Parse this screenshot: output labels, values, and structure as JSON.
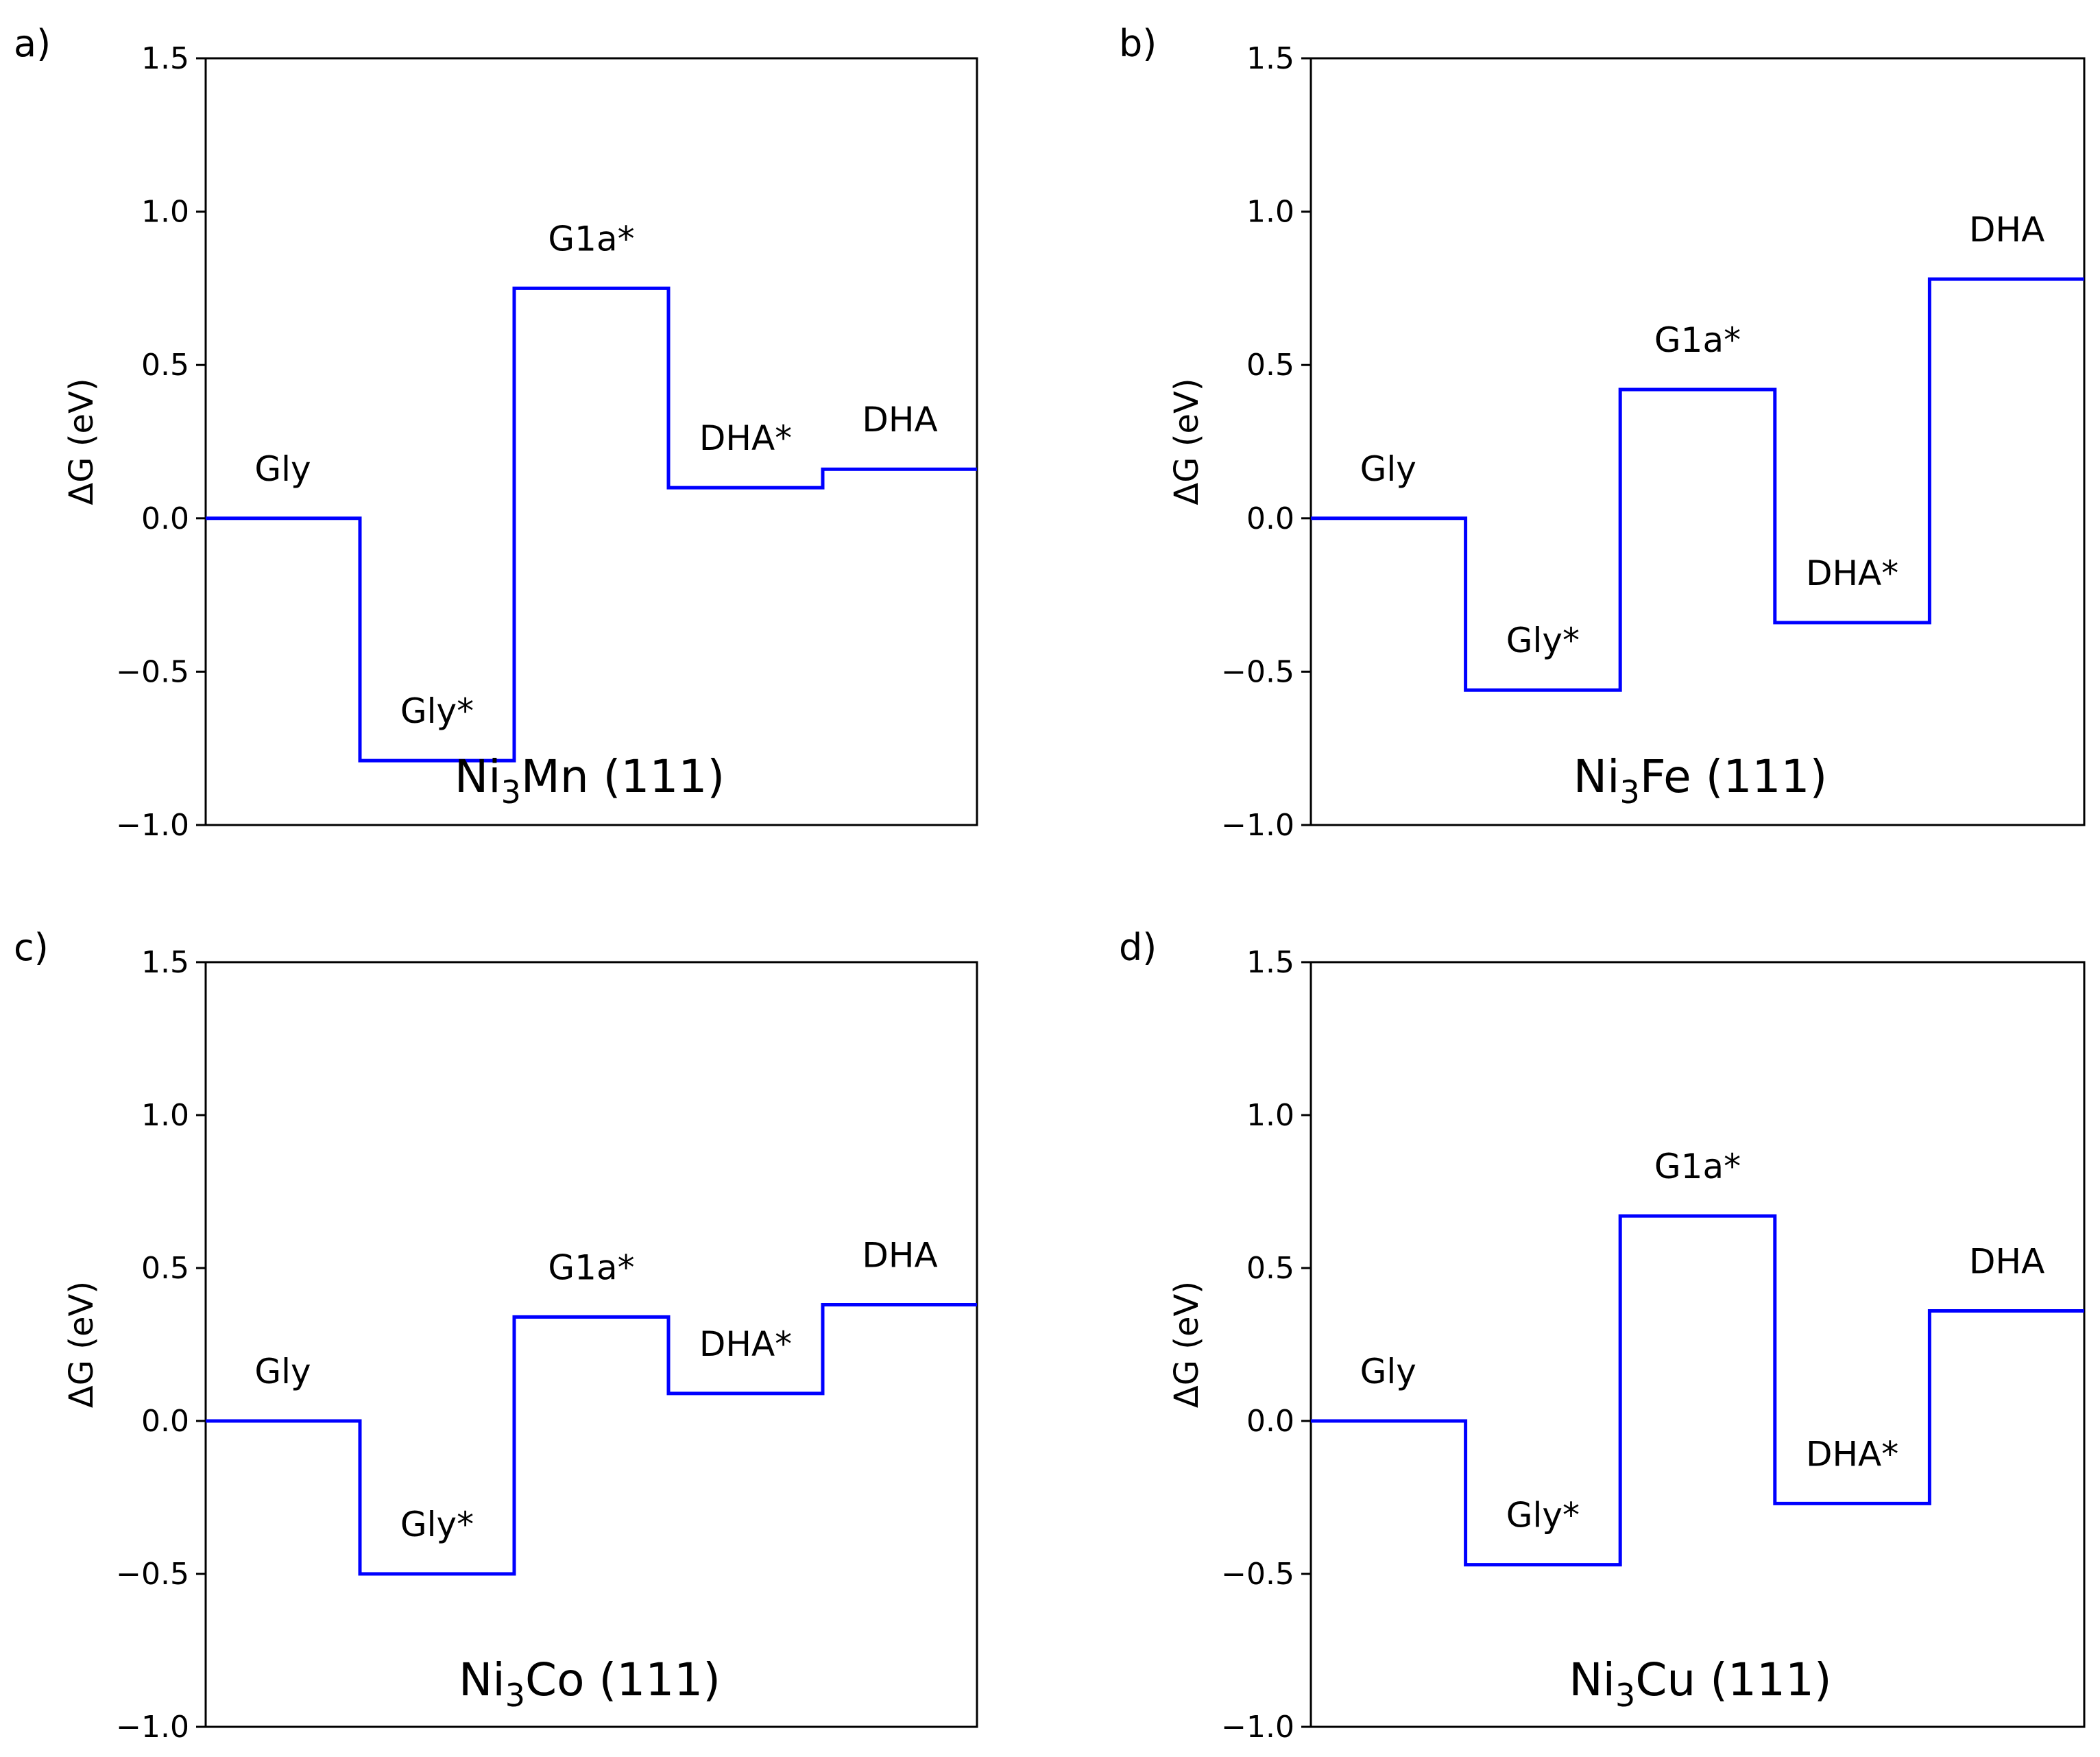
{
  "chart_data": [
    {
      "type": "line",
      "panel_label": "a)",
      "title": {
        "pre": "Ni",
        "sub": "3",
        "post": "Mn (111)"
      },
      "ylabel": "ΔG (eV)",
      "xlabel": "",
      "ylim": [
        -1.0,
        1.5
      ],
      "yticks": [
        -1.0,
        -0.5,
        0.0,
        0.5,
        1.0,
        1.5
      ],
      "ytick_labels": [
        "−1.0",
        "−0.5",
        "0.0",
        "0.5",
        "1.0",
        "1.5"
      ],
      "states": [
        "Gly",
        "Gly*",
        "G1a*",
        "DHA*",
        "DHA"
      ],
      "values": [
        0.0,
        -0.79,
        0.75,
        0.1,
        0.16
      ],
      "line_color": "#0000ff"
    },
    {
      "type": "line",
      "panel_label": "b)",
      "title": {
        "pre": "Ni",
        "sub": "3",
        "post": "Fe (111)"
      },
      "ylabel": "ΔG (eV)",
      "xlabel": "",
      "ylim": [
        -1.0,
        1.5
      ],
      "yticks": [
        -1.0,
        -0.5,
        0.0,
        0.5,
        1.0,
        1.5
      ],
      "ytick_labels": [
        "−1.0",
        "−0.5",
        "0.0",
        "0.5",
        "1.0",
        "1.5"
      ],
      "states": [
        "Gly",
        "Gly*",
        "G1a*",
        "DHA*",
        "DHA"
      ],
      "values": [
        0.0,
        -0.56,
        0.42,
        -0.34,
        0.78
      ],
      "line_color": "#0000ff"
    },
    {
      "type": "line",
      "panel_label": "c)",
      "title": {
        "pre": "Ni",
        "sub": "3",
        "post": "Co (111)"
      },
      "ylabel": "ΔG (eV)",
      "xlabel": "",
      "ylim": [
        -1.0,
        1.5
      ],
      "yticks": [
        -1.0,
        -0.5,
        0.0,
        0.5,
        1.0,
        1.5
      ],
      "ytick_labels": [
        "−1.0",
        "−0.5",
        "0.0",
        "0.5",
        "1.0",
        "1.5"
      ],
      "states": [
        "Gly",
        "Gly*",
        "G1a*",
        "DHA*",
        "DHA"
      ],
      "values": [
        0.0,
        -0.5,
        0.34,
        0.09,
        0.38
      ],
      "line_color": "#0000ff"
    },
    {
      "type": "line",
      "panel_label": "d)",
      "title": {
        "pre": "Ni",
        "sub": "3",
        "post": "Cu (111)"
      },
      "ylabel": "ΔG (eV)",
      "xlabel": "",
      "ylim": [
        -1.0,
        1.5
      ],
      "yticks": [
        -1.0,
        -0.5,
        0.0,
        0.5,
        1.0,
        1.5
      ],
      "ytick_labels": [
        "−1.0",
        "−0.5",
        "0.0",
        "0.5",
        "1.0",
        "1.5"
      ],
      "states": [
        "Gly",
        "Gly*",
        "G1a*",
        "DHA*",
        "DHA"
      ],
      "values": [
        0.0,
        -0.47,
        0.67,
        -0.27,
        0.36
      ],
      "line_color": "#0000ff"
    }
  ]
}
